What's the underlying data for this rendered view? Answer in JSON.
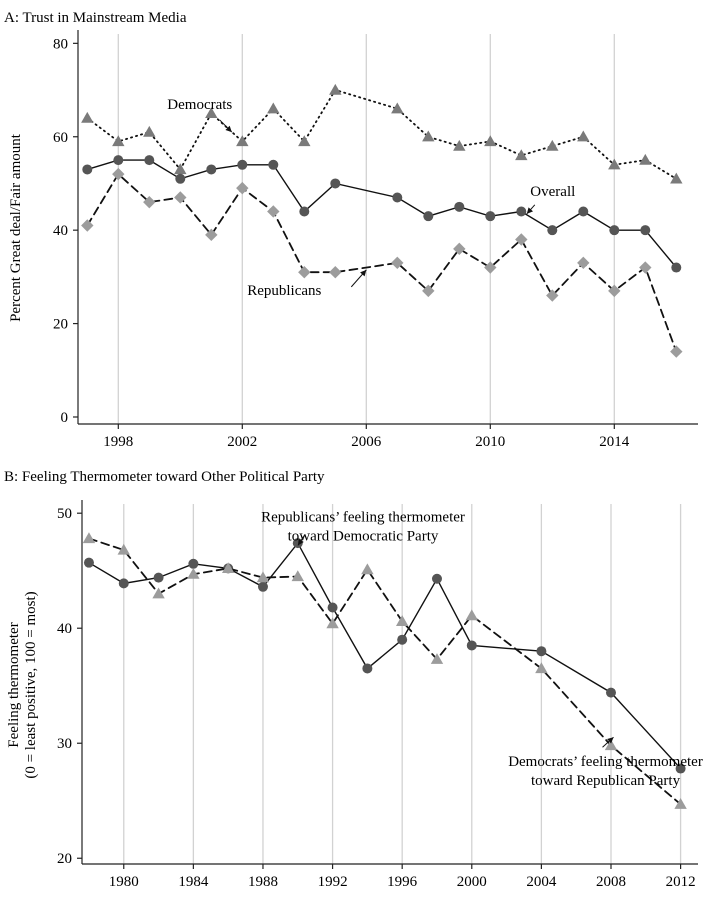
{
  "chart_data": [
    {
      "type": "line",
      "title": "A: Trust in Mainstream Media",
      "xlabel": "",
      "ylabel": "Percent Great deal/Fair amount",
      "xlim": [
        1996.7,
        2016.7
      ],
      "ylim": [
        -1.5,
        82
      ],
      "xticks": [
        1998,
        2002,
        2006,
        2010,
        2014
      ],
      "yticks": [
        0,
        20,
        40,
        60,
        80
      ],
      "grid": "vertical",
      "legend": "none",
      "series": [
        {
          "key": "democrats",
          "marker": "triangle",
          "style": "dotted",
          "color": "#7a7a7a",
          "x": [
            1997,
            1998,
            1999,
            2000,
            2001,
            2002,
            2003,
            2004,
            2005,
            2007,
            2008,
            2009,
            2010,
            2011,
            2012,
            2013,
            2014,
            2015,
            2016
          ],
          "values": [
            64,
            59,
            61,
            53,
            65,
            59,
            66,
            59,
            70,
            66,
            60,
            58,
            59,
            56,
            58,
            60,
            54,
            55,
            51
          ]
        },
        {
          "key": "overall",
          "marker": "circle",
          "style": "solid",
          "color": "#555555",
          "x": [
            1997,
            1998,
            1999,
            2000,
            2001,
            2002,
            2003,
            2004,
            2005,
            2007,
            2008,
            2009,
            2010,
            2011,
            2012,
            2013,
            2014,
            2015,
            2016
          ],
          "values": [
            53,
            55,
            55,
            51,
            53,
            54,
            54,
            44,
            50,
            47,
            43,
            45,
            43,
            44,
            40,
            44,
            40,
            40,
            32
          ]
        },
        {
          "key": "republicans",
          "marker": "diamond",
          "style": "dashed",
          "color": "#9c9c9c",
          "x": [
            1997,
            1998,
            1999,
            2000,
            2001,
            2002,
            2003,
            2004,
            2005,
            2007,
            2008,
            2009,
            2010,
            2011,
            2012,
            2013,
            2014,
            2015,
            2016
          ],
          "values": [
            41,
            52,
            46,
            47,
            39,
            49,
            44,
            31,
            31,
            33,
            27,
            36,
            32,
            38,
            26,
            33,
            27,
            32,
            14
          ]
        }
      ],
      "annotations": [
        {
          "text": "Democrats",
          "series": "democrats",
          "at": [
            2001.5,
            61
          ]
        },
        {
          "text": "Overall",
          "series": "overall",
          "at": [
            2011.5,
            43.5
          ]
        },
        {
          "text": "Republicans",
          "series": "republicans",
          "at": [
            2006,
            31.5
          ]
        }
      ]
    },
    {
      "type": "line",
      "title": "B: Feeling Thermometer toward Other Political Party",
      "xlabel": "",
      "ylabel": [
        "Feeling thermometer",
        "(0 = least positive, 100 = most)"
      ],
      "xlim": [
        1977.6,
        2013
      ],
      "ylim": [
        19.5,
        50.8
      ],
      "xticks": [
        1980,
        1984,
        1988,
        1992,
        1996,
        2000,
        2004,
        2008,
        2012
      ],
      "yticks": [
        20,
        30,
        40,
        50
      ],
      "grid": "vertical",
      "legend": "none",
      "series": [
        {
          "key": "republicans_toward_dem",
          "marker": "circle",
          "style": "solid",
          "color": "#555555",
          "x": [
            1978,
            1980,
            1982,
            1984,
            1986,
            1988,
            1990,
            1992,
            1994,
            1996,
            1998,
            2000,
            2004,
            2008,
            2012
          ],
          "values": [
            45.7,
            43.9,
            44.4,
            45.6,
            45.2,
            43.6,
            47.4,
            41.8,
            36.5,
            39.0,
            44.3,
            38.5,
            38.0,
            34.4,
            27.8
          ]
        },
        {
          "key": "democrats_toward_rep",
          "marker": "triangle",
          "style": "dashed",
          "color": "#9c9c9c",
          "x": [
            1978,
            1980,
            1982,
            1984,
            1986,
            1988,
            1990,
            1992,
            1994,
            1996,
            1998,
            2000,
            2004,
            2008,
            2012
          ],
          "values": [
            47.8,
            46.8,
            43.0,
            44.7,
            45.2,
            44.4,
            44.5,
            40.4,
            45.1,
            40.6,
            37.3,
            41.1,
            36.5,
            29.8,
            24.7
          ]
        }
      ],
      "annotations": [
        {
          "text": [
            "Republicans’ feeling thermometer",
            "toward Democratic Party"
          ],
          "series": "republicans_toward_dem",
          "at": [
            1990.3,
            47.2
          ]
        },
        {
          "text": [
            "Democrats’ feeling thermometer",
            "toward Republican Party"
          ],
          "series": "democrats_toward_rep",
          "at": [
            2007.8,
            30.0
          ]
        }
      ]
    }
  ]
}
